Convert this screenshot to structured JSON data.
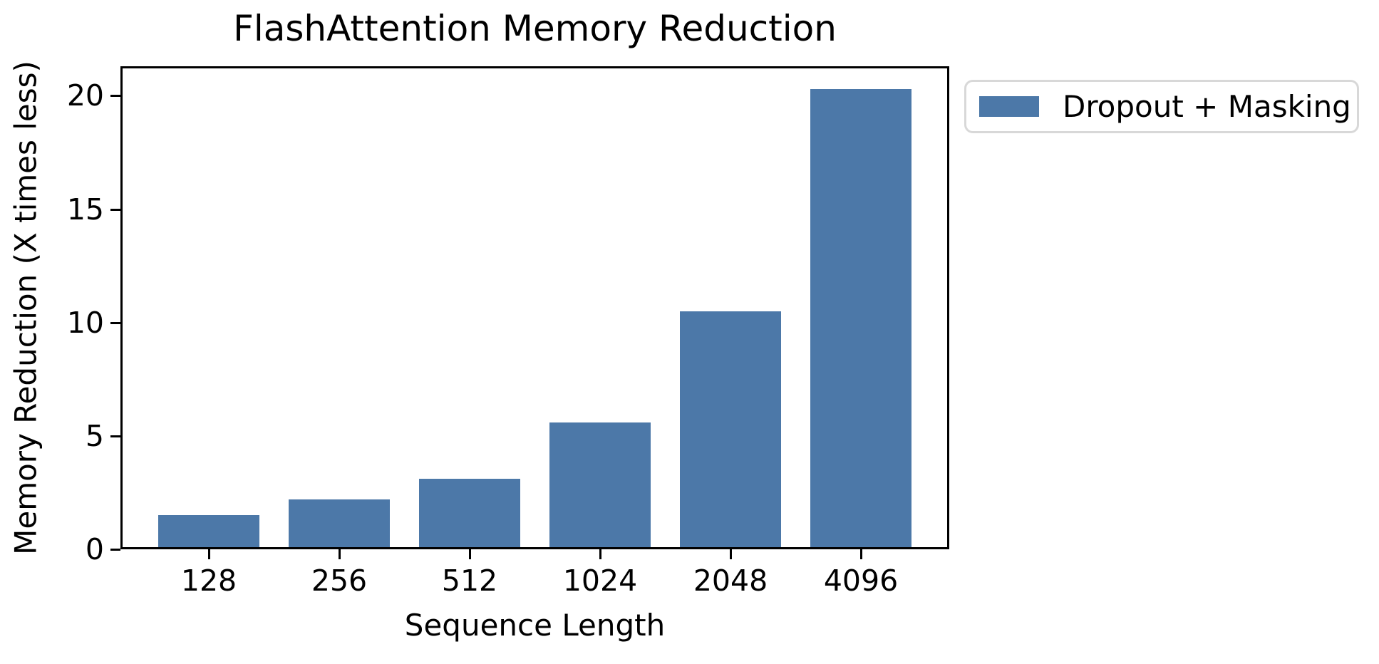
{
  "title": "FlashAttention Memory Reduction",
  "legend": {
    "items": [
      {
        "label": "Dropout + Masking",
        "color": "#4C78A8"
      }
    ]
  },
  "chart_data": {
    "type": "bar",
    "title": "FlashAttention Memory Reduction",
    "categories": [
      "128",
      "256",
      "512",
      "1024",
      "2048",
      "4096"
    ],
    "series": [
      {
        "name": "Dropout + Masking",
        "values": [
          1.5,
          2.2,
          3.1,
          5.6,
          10.5,
          20.3
        ]
      }
    ],
    "xlabel": "Sequence Length",
    "ylabel": "Memory Reduction (X times less)",
    "ylim": [
      0,
      21.3
    ],
    "yticks": [
      0,
      5,
      10,
      15,
      20
    ],
    "grid": false,
    "legend_position": "outside-upper-right",
    "bar_color": "#4C78A8",
    "axis_color": "#000000",
    "text_color": "#000000",
    "background": "#FFFFFF",
    "legend_border_color": "#D8D8D8"
  }
}
